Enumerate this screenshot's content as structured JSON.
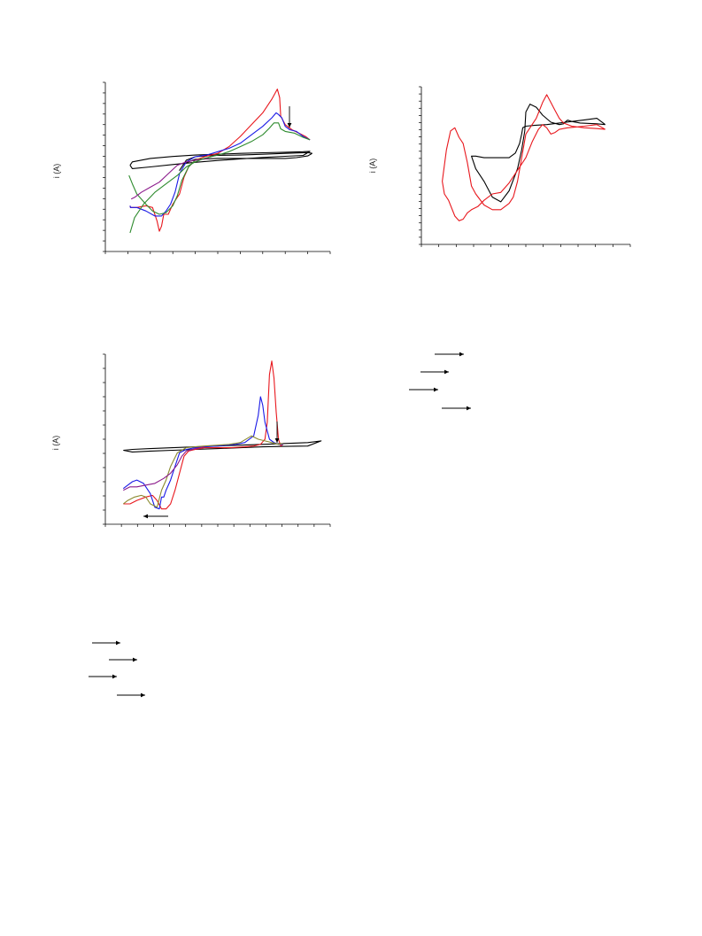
{
  "colors": {
    "axis": "#000000",
    "black": "#000000",
    "red": "#e8171d",
    "blue": "#1a1ae6",
    "green": "#2e8b2e",
    "olive": "#8a8a2e",
    "purple": "#8b1a8b"
  },
  "chart_data": [
    {
      "type": "line",
      "ylabel": "i (A)",
      "xlim": [
        0,
        100
      ],
      "ylim": [
        0,
        100
      ],
      "annotations": [
        "down-arrow"
      ],
      "series": [
        {
          "color": "black",
          "x": [
            11,
            12,
            20,
            30,
            40,
            50,
            60,
            70,
            80,
            88,
            91,
            88,
            80,
            70,
            60,
            50,
            40,
            30,
            20,
            12,
            11
          ],
          "y": [
            51,
            53,
            55,
            56.2,
            57,
            57.5,
            58,
            58.4,
            58.7,
            59,
            59.2,
            56.8,
            56.3,
            55.6,
            54.7,
            53.8,
            52.7,
            51.4,
            50,
            49,
            51
          ]
        },
        {
          "color": "black",
          "x": [
            92,
            90,
            80,
            70,
            60,
            50,
            44,
            40,
            36,
            34,
            33,
            35,
            40,
            50,
            60,
            70,
            80,
            85,
            90,
            92
          ],
          "y": [
            58,
            58.5,
            58,
            57.5,
            57,
            56.8,
            56.5,
            56,
            54,
            50,
            48,
            52,
            54.5,
            55,
            55,
            55,
            55,
            55.5,
            56.5,
            58
          ]
        },
        {
          "color": "red",
          "x": [
            91,
            89,
            86,
            83,
            80,
            78,
            77.5,
            76.5,
            74,
            70,
            65,
            60,
            55,
            50,
            44,
            40,
            37,
            35,
            33,
            30,
            28,
            26,
            25,
            24,
            23,
            21,
            18,
            14,
            11.2,
            11
          ],
          "y": [
            66,
            68,
            70,
            72,
            75,
            80,
            91,
            96,
            90,
            82,
            75,
            68,
            62,
            58,
            56,
            54,
            50,
            44,
            34,
            28,
            22,
            22,
            15,
            12,
            18,
            26,
            27,
            26,
            26,
            27
          ]
        },
        {
          "color": "blue",
          "x": [
            91,
            88,
            85,
            82,
            80,
            78.5,
            77,
            76,
            74,
            70,
            65,
            60,
            55,
            50,
            45,
            40,
            36,
            33,
            31,
            29,
            27,
            25,
            22,
            18,
            14,
            11.2,
            11
          ],
          "y": [
            66,
            68,
            71,
            72,
            74,
            79,
            81,
            82,
            79,
            74,
            69,
            64,
            61,
            59,
            57,
            56,
            53,
            46,
            35,
            28,
            24,
            21,
            21,
            24,
            26,
            26,
            27
          ]
        },
        {
          "color": "green",
          "x": [
            91,
            88,
            84,
            80,
            78,
            77,
            75,
            73,
            70,
            65,
            60,
            55,
            50,
            44,
            40,
            37,
            34,
            32,
            30,
            27,
            24,
            21,
            18,
            14,
            12,
            10.5
          ],
          "y": [
            66,
            67.5,
            70,
            71,
            72.5,
            76,
            76,
            73,
            69,
            65,
            62,
            59,
            57,
            55,
            54,
            50,
            42,
            33,
            27,
            23,
            22,
            24,
            28,
            34,
            40,
            45
          ]
        },
        {
          "color": "purple",
          "x": [
            46,
            43,
            40,
            36,
            32,
            28,
            24,
            20,
            16,
            13,
            11.5
          ],
          "y": [
            55,
            54.5,
            54,
            53,
            51,
            46,
            41,
            38,
            35,
            32,
            31
          ]
        },
        {
          "color": "green",
          "x": [
            11,
            13,
            17,
            22,
            27,
            32,
            36,
            40,
            44,
            47
          ],
          "y": [
            11,
            20,
            28,
            35,
            40,
            45,
            50,
            53,
            55,
            56
          ]
        }
      ]
    },
    {
      "type": "line",
      "ylabel": "i (A)",
      "xlim": [
        0,
        100
      ],
      "ylim": [
        0,
        100
      ],
      "series": [
        {
          "color": "black",
          "x": [
            88,
            84,
            76,
            72,
            70,
            69,
            68,
            66,
            62,
            58,
            55,
            52,
            50,
            49.5,
            48,
            46,
            42,
            38,
            34,
            30,
            26,
            25,
            24,
            26,
            30,
            36,
            42,
            45,
            47,
            48,
            48.5,
            50,
            54,
            60,
            66,
            72,
            78,
            84,
            88
          ],
          "y": [
            76,
            76.5,
            77,
            78,
            78.8,
            77.8,
            76.5,
            76,
            77.5,
            82,
            87,
            89,
            84,
            72,
            60,
            48,
            34,
            27,
            30,
            40,
            48,
            52,
            56,
            56,
            55,
            55,
            55,
            58,
            64,
            70,
            74,
            75,
            75.5,
            76,
            77,
            78,
            79,
            80,
            76
          ]
        },
        {
          "color": "red",
          "x": [
            88,
            84,
            78,
            72,
            68,
            66,
            64,
            62,
            60,
            58,
            55,
            52,
            50,
            48,
            46,
            44,
            42,
            38,
            34,
            30,
            26,
            24,
            22,
            20,
            18,
            16,
            14,
            12,
            10,
            11,
            13,
            16,
            18,
            20,
            22,
            24,
            27,
            30,
            34,
            38,
            42,
            46,
            50,
            53,
            56,
            58,
            60,
            62,
            64,
            66,
            70,
            74,
            78,
            84,
            88
          ],
          "y": [
            73,
            73.5,
            74,
            75,
            77,
            80,
            85,
            90,
            95,
            90,
            80,
            74,
            70,
            55,
            40,
            30,
            26,
            22,
            22,
            25,
            32,
            37,
            52,
            64,
            68,
            74,
            72,
            60,
            40,
            32,
            28,
            18,
            15,
            16,
            20,
            22,
            24,
            28,
            32,
            33,
            39,
            47,
            55,
            65,
            73,
            76,
            74,
            70,
            71,
            73,
            74,
            74.5,
            75,
            76,
            73
          ]
        }
      ]
    },
    {
      "type": "line",
      "ylabel": "i (A)",
      "xlim": [
        0,
        100
      ],
      "ylim": [
        0,
        100
      ],
      "annotations": [
        "down-arrow",
        "left-arrow"
      ],
      "series": [
        {
          "color": "black",
          "x": [
            8,
            12,
            20,
            30,
            40,
            50,
            60,
            70,
            80,
            90,
            96,
            90,
            80,
            70,
            60,
            50,
            40,
            30,
            20,
            12,
            8
          ],
          "y": [
            43.5,
            44,
            44.5,
            45,
            45.5,
            46,
            46.5,
            47,
            47.5,
            48,
            49,
            46,
            45.8,
            45.5,
            45,
            44.5,
            44,
            43.5,
            43,
            42.5,
            43.5
          ]
        },
        {
          "color": "red",
          "x": [
            79,
            78,
            77,
            76,
            75,
            74,
            73,
            72,
            71,
            69,
            66,
            62,
            56,
            50,
            44,
            40,
            37,
            35,
            33,
            31,
            29,
            27,
            25,
            23,
            21,
            18,
            14,
            11,
            8
          ],
          "y": [
            47,
            46,
            50,
            66,
            86,
            96,
            88,
            60,
            50,
            47,
            46,
            45.5,
            45,
            45,
            45,
            44,
            43,
            40,
            30,
            20,
            12,
            9,
            9,
            14,
            17,
            16,
            14,
            12,
            12
          ]
        },
        {
          "color": "blue",
          "x": [
            79,
            77,
            75,
            73,
            71,
            70,
            69,
            68,
            66,
            62,
            58,
            54,
            50,
            44,
            40,
            36,
            33,
            31,
            29,
            27,
            26,
            25,
            24,
            22,
            20,
            17,
            14,
            12,
            10,
            8
          ],
          "y": [
            47,
            47,
            48,
            50,
            60,
            70,
            75,
            64,
            52,
            48,
            47,
            46.5,
            46,
            45.5,
            45,
            44,
            42,
            34,
            26,
            20,
            16,
            16,
            9,
            10,
            18,
            24,
            26,
            25,
            23,
            21
          ]
        },
        {
          "color": "olive",
          "x": [
            79,
            77,
            74,
            71,
            68,
            65,
            60,
            55,
            50,
            44,
            40,
            36,
            32,
            29,
            27,
            25,
            23,
            20,
            18,
            16,
            13,
            10,
            8
          ],
          "y": [
            47.5,
            47,
            48,
            49,
            50,
            52,
            48,
            47,
            46.5,
            46,
            45.5,
            45,
            42,
            34,
            26,
            20,
            10,
            12,
            16,
            17,
            16,
            14,
            12
          ]
        },
        {
          "color": "purple",
          "x": [
            44,
            40,
            36,
            34,
            32,
            29,
            26,
            22,
            18,
            14,
            11,
            8
          ],
          "y": [
            45.5,
            44.5,
            43,
            40,
            35,
            30,
            27,
            24,
            23,
            22,
            22,
            20
          ]
        }
      ]
    }
  ],
  "legends": {
    "top_right": [
      "arrow-1",
      "arrow-2",
      "arrow-3",
      "arrow-4"
    ],
    "bottom_left": [
      "arrow-1",
      "arrow-2",
      "arrow-3",
      "arrow-4"
    ]
  }
}
